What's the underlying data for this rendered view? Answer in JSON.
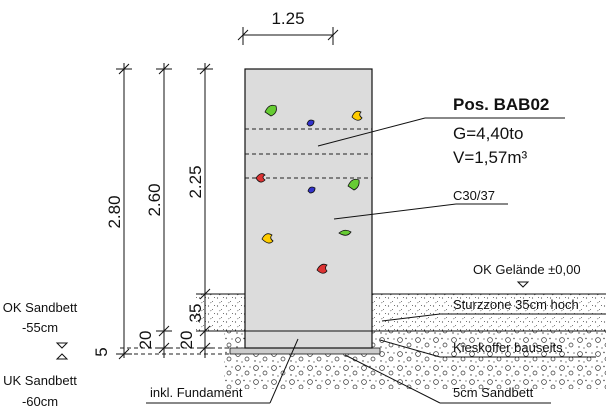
{
  "dimensions": {
    "width": "1.25",
    "height_total": "2.80",
    "height_260": "2.60",
    "height_225": "2.25",
    "d35": "35",
    "d20_left": "20",
    "d20_right": "20",
    "d5": "5"
  },
  "position": {
    "title": "Pos. BAB02",
    "weight": "G=4,40to",
    "volume": "V=1,57m³"
  },
  "concrete_class": "C30/37",
  "labels": {
    "ok_gelaende": "OK Gelände ±0,00",
    "sturzzone": "Sturzzone 35cm hoch",
    "kieskoffer": "Kieskoffer bauseits",
    "sandbett": "5cm Sandbett",
    "fundament": "inkl. Fundament",
    "ok_sandbett_title": "OK Sandbett",
    "ok_sandbett_value": "-55cm",
    "uk_sandbett_title": "UK Sandbett",
    "uk_sandbett_value": "-60cm"
  },
  "hold_colors": [
    "#66cc33",
    "#3333cc",
    "#ffcc00",
    "#dd3333"
  ]
}
